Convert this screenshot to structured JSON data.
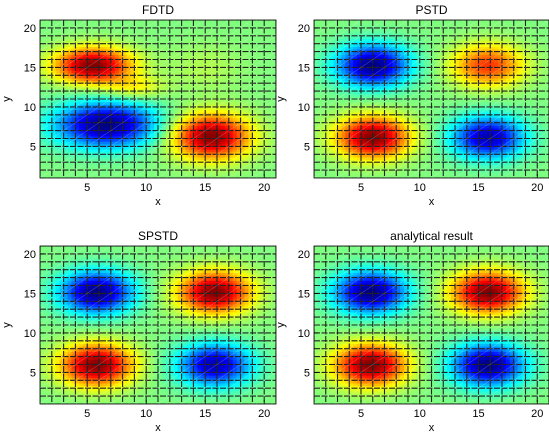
{
  "chart_data": [
    {
      "type": "heatmap",
      "title": "FDTD",
      "xlabel": "x",
      "ylabel": "y",
      "xlim": [
        1,
        21
      ],
      "ylim": [
        1,
        21
      ],
      "xticks": [
        5,
        10,
        15,
        20
      ],
      "yticks": [
        5,
        10,
        15,
        20
      ],
      "colormap": "jet",
      "mesh_lines": true,
      "field": {
        "grid_size": 21,
        "blobs": [
          {
            "x": 5.5,
            "y": 15.3,
            "sx": 3.2,
            "sy": 2.2,
            "amp": 1.0
          },
          {
            "x": 6.6,
            "y": 7.8,
            "sx": 4.2,
            "sy": 2.8,
            "amp": -1.0
          },
          {
            "x": 15.5,
            "y": 6.3,
            "sx": 3.2,
            "sy": 2.8,
            "amp": 1.0
          },
          {
            "x": 15.0,
            "y": 15.0,
            "sx": 3.0,
            "sy": 3.0,
            "amp": 0.1
          },
          {
            "x": 9.0,
            "y": 12.5,
            "sx": 2.5,
            "sy": 1.5,
            "amp": 0.25
          }
        ]
      }
    },
    {
      "type": "heatmap",
      "title": "PSTD",
      "xlabel": "x",
      "ylabel": "y",
      "xlim": [
        1,
        21
      ],
      "ylim": [
        1,
        21
      ],
      "xticks": [
        5,
        10,
        15,
        20
      ],
      "yticks": [
        5,
        10,
        15,
        20
      ],
      "colormap": "jet",
      "mesh_lines": true,
      "field": {
        "grid_size": 21,
        "blobs": [
          {
            "x": 6.0,
            "y": 15.3,
            "sx": 3.0,
            "sy": 2.6,
            "amp": -1.0
          },
          {
            "x": 15.8,
            "y": 15.3,
            "sx": 3.0,
            "sy": 2.6,
            "amp": 0.65
          },
          {
            "x": 6.0,
            "y": 6.2,
            "sx": 3.0,
            "sy": 2.6,
            "amp": 1.0
          },
          {
            "x": 15.8,
            "y": 6.2,
            "sx": 3.0,
            "sy": 2.6,
            "amp": -0.9
          }
        ]
      }
    },
    {
      "type": "heatmap",
      "title": "SPSTD",
      "xlabel": "x",
      "ylabel": "y",
      "xlim": [
        1,
        21
      ],
      "ylim": [
        1,
        21
      ],
      "xticks": [
        5,
        10,
        15,
        20
      ],
      "yticks": [
        5,
        10,
        15,
        20
      ],
      "colormap": "jet",
      "mesh_lines": true,
      "field": {
        "grid_size": 21,
        "blobs": [
          {
            "x": 5.8,
            "y": 15.2,
            "sx": 3.0,
            "sy": 2.6,
            "amp": -1.0
          },
          {
            "x": 15.8,
            "y": 15.2,
            "sx": 3.0,
            "sy": 2.6,
            "amp": 1.0
          },
          {
            "x": 5.8,
            "y": 6.0,
            "sx": 3.0,
            "sy": 2.6,
            "amp": 1.0
          },
          {
            "x": 15.8,
            "y": 6.0,
            "sx": 3.0,
            "sy": 2.6,
            "amp": -0.9
          }
        ]
      }
    },
    {
      "type": "heatmap",
      "title": "analytical result",
      "xlabel": "x",
      "ylabel": "y",
      "xlim": [
        1,
        21
      ],
      "ylim": [
        1,
        21
      ],
      "xticks": [
        5,
        10,
        15,
        20
      ],
      "yticks": [
        5,
        10,
        15,
        20
      ],
      "colormap": "jet",
      "mesh_lines": true,
      "field": {
        "grid_size": 21,
        "blobs": [
          {
            "x": 5.8,
            "y": 15.2,
            "sx": 3.0,
            "sy": 2.6,
            "amp": -1.0
          },
          {
            "x": 15.8,
            "y": 15.2,
            "sx": 3.0,
            "sy": 2.6,
            "amp": 1.0
          },
          {
            "x": 5.8,
            "y": 6.0,
            "sx": 3.0,
            "sy": 2.6,
            "amp": 1.0
          },
          {
            "x": 15.8,
            "y": 6.0,
            "sx": 3.0,
            "sy": 2.6,
            "amp": -1.0
          }
        ]
      }
    }
  ]
}
